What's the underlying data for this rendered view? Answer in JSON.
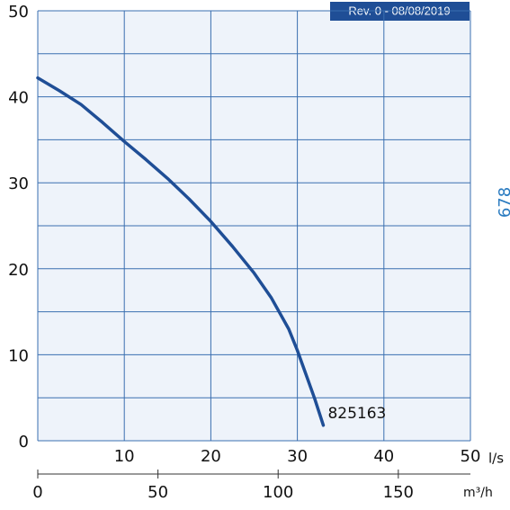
{
  "chart_data": {
    "type": "line",
    "x": [
      0,
      2.5,
      5,
      7.5,
      10,
      12.5,
      15,
      17.5,
      20,
      22.5,
      25,
      27,
      29,
      30,
      31,
      32,
      33
    ],
    "series": [
      {
        "name": "825163",
        "color": "#1f4e96",
        "values": [
          42.2,
          40.7,
          39.1,
          37.0,
          34.8,
          32.7,
          30.5,
          28.1,
          25.5,
          22.6,
          19.5,
          16.6,
          13.0,
          10.5,
          7.7,
          4.9,
          1.8
        ]
      }
    ],
    "xlim": [
      0,
      50
    ],
    "xticks": [
      10,
      20,
      30,
      40,
      50
    ],
    "xlabel": "l/s",
    "ylim": [
      0,
      50
    ],
    "yticks": [
      0,
      10,
      20,
      30,
      40,
      50
    ],
    "y_minor_ticks": [
      5,
      15,
      25,
      35,
      45
    ],
    "x2lim": [
      0,
      180
    ],
    "x2ticks": [
      0,
      50,
      100,
      150
    ],
    "x2label": "m³/h",
    "annotations": [
      "Rev. 0 - 08/08/2019",
      "678"
    ],
    "grid": true
  }
}
